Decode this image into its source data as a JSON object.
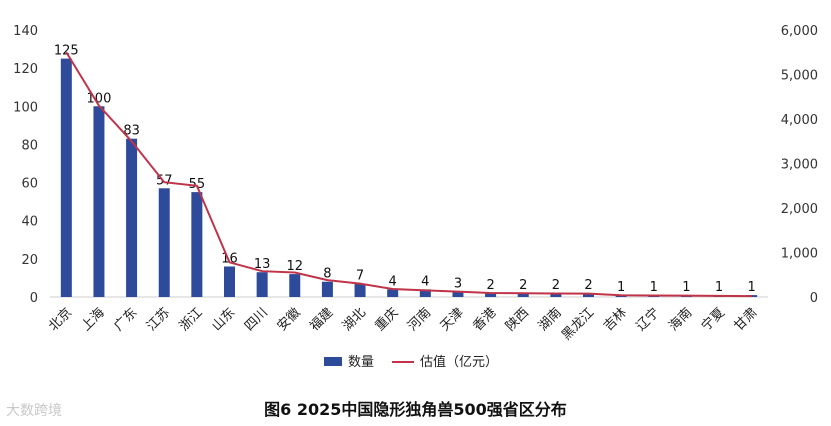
{
  "caption": "图6 2025中国隐形独角兽500强省区分布",
  "watermark": "大数跨境",
  "chart_data": {
    "type": "bar",
    "categories": [
      "北京",
      "上海",
      "广东",
      "江苏",
      "浙江",
      "山东",
      "四川",
      "安徽",
      "福建",
      "湖北",
      "重庆",
      "河南",
      "天津",
      "香港",
      "陕西",
      "湖南",
      "黑龙江",
      "吉林",
      "辽宁",
      "海南",
      "宁夏",
      "甘肃"
    ],
    "series": [
      {
        "name": "数量",
        "type": "bar",
        "axis": "left",
        "color": "#2e4a9a",
        "values": [
          125,
          100,
          83,
          57,
          55,
          16,
          13,
          12,
          8,
          7,
          4,
          4,
          3,
          2,
          2,
          2,
          2,
          1,
          1,
          1,
          1,
          1
        ]
      },
      {
        "name": "估值（亿元）",
        "type": "line",
        "axis": "right",
        "color": "#c0344a",
        "values": [
          5500,
          4300,
          3500,
          2580,
          2500,
          780,
          580,
          550,
          380,
          300,
          180,
          150,
          120,
          90,
          85,
          80,
          75,
          40,
          35,
          30,
          25,
          20
        ]
      }
    ],
    "y_left": {
      "min": 0,
      "max": 140,
      "ticks": [
        "0",
        "20",
        "40",
        "60",
        "80",
        "100",
        "120",
        "140"
      ]
    },
    "y_right": {
      "min": 0,
      "max": 6000,
      "ticks": [
        "0",
        "1,000",
        "2,000",
        "3,000",
        "4,000",
        "5,000",
        "6,000"
      ]
    },
    "legend": "bottom-center",
    "grid": false
  }
}
